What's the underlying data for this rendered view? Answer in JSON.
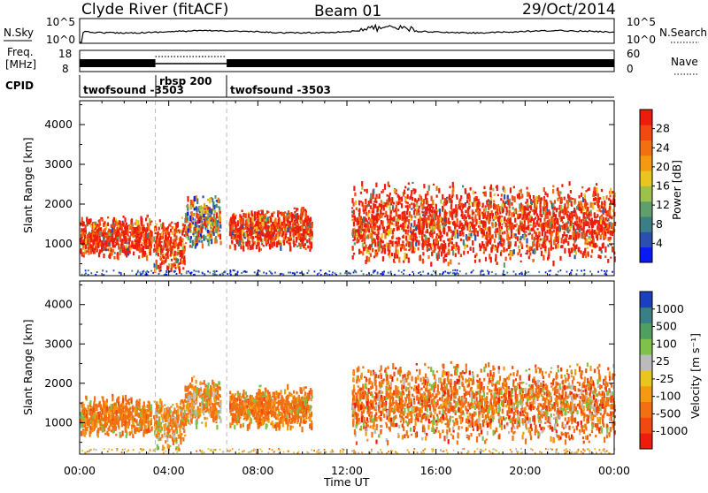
{
  "header": {
    "station": "Clyde River (fitACF)",
    "beam": "Beam 01",
    "date": "29/Oct/2014"
  },
  "status_panels": {
    "nsky_label": "N.Sky",
    "nsky_ticks": [
      "10^5",
      "10^0"
    ],
    "nsearch_label": "N.Search",
    "freq_label_line1": "Freq.",
    "freq_label_line2": "[MHz]",
    "freq_ticks": [
      "18",
      "8"
    ],
    "nave_label": "Nave",
    "nave_ticks": [
      "60",
      "0"
    ],
    "cpid_label": "CPID",
    "cpid_segments": [
      {
        "label": "twofsound -3503",
        "start": 0.0,
        "end": 3.4
      },
      {
        "label": "rbsp 200",
        "start": 3.4,
        "end": 6.6
      },
      {
        "label": "twofsound -3503",
        "start": 6.6,
        "end": 24.0
      }
    ],
    "cpid_overlap_label": "-3503"
  },
  "chart_data": [
    {
      "type": "heatmap",
      "name": "power",
      "ylabel": "Slant Range [km]",
      "xlabel": "",
      "xlim": [
        0,
        24
      ],
      "ylim": [
        200,
        4600
      ],
      "y_ticks": [
        1000,
        2000,
        3000,
        4000
      ],
      "colorbar_label": "Power [dB]",
      "colorbar_ticks": [
        "4",
        "8",
        "12",
        "16",
        "20",
        "24",
        "28"
      ],
      "colorbar_colors": [
        "#0a1af5",
        "#2a4fb0",
        "#3a7f85",
        "#5fa06a",
        "#9cc24a",
        "#e8c520",
        "#f59a10",
        "#f27010",
        "#f04a10",
        "#ee1c0c"
      ],
      "dashed_lines_x": [
        3.4,
        6.6
      ],
      "scatter_regions": [
        {
          "t0": 0.0,
          "t1": 3.2,
          "r0": 650,
          "r1": 1750,
          "dominant": "red-orange"
        },
        {
          "t0": 3.3,
          "t1": 4.7,
          "r0": 300,
          "r1": 1700,
          "dominant": "red-orange"
        },
        {
          "t0": 4.7,
          "t1": 6.3,
          "r0": 900,
          "r1": 2250,
          "dominant": "mixed"
        },
        {
          "t0": 6.7,
          "t1": 8.2,
          "r0": 900,
          "r1": 1900,
          "dominant": "red-orange"
        },
        {
          "t0": 7.9,
          "t1": 10.4,
          "r0": 850,
          "r1": 2000,
          "dominant": "red-orange"
        },
        {
          "t0": 12.2,
          "t1": 24.0,
          "r0": 500,
          "r1": 2600,
          "dominant": "red-orange"
        }
      ]
    },
    {
      "type": "heatmap",
      "name": "velocity",
      "ylabel": "Slant Range [km]",
      "xlabel": "Time UT",
      "xlim": [
        0,
        24
      ],
      "ylim": [
        200,
        4600
      ],
      "x_ticks": [
        "00:00",
        "04:00",
        "08:00",
        "12:00",
        "16:00",
        "20:00",
        "00:00"
      ],
      "y_ticks": [
        1000,
        2000,
        3000,
        4000
      ],
      "colorbar_label": "Velocity [m s⁻¹]",
      "colorbar_ticks": [
        "-1000",
        "-500",
        "-100",
        "-25",
        "25",
        "100",
        "500",
        "1000"
      ],
      "colorbar_colors": [
        "#ee1c0c",
        "#f04a10",
        "#f27010",
        "#f59a10",
        "#e8c520",
        "#bbbbbb",
        "#7fc24a",
        "#4fa060",
        "#3a7f85",
        "#1a3fc0"
      ],
      "dashed_lines_x": [
        3.4,
        6.6
      ],
      "scatter_regions": [
        {
          "t0": 0.0,
          "t1": 3.2,
          "r0": 650,
          "r1": 1750,
          "dominant": "orange"
        },
        {
          "t0": 3.3,
          "t1": 4.7,
          "r0": 300,
          "r1": 1700,
          "dominant": "orange-green"
        },
        {
          "t0": 4.7,
          "t1": 6.3,
          "r0": 900,
          "r1": 2250,
          "dominant": "orange-green"
        },
        {
          "t0": 6.7,
          "t1": 8.2,
          "r0": 900,
          "r1": 1900,
          "dominant": "orange"
        },
        {
          "t0": 7.9,
          "t1": 10.4,
          "r0": 850,
          "r1": 2000,
          "dominant": "orange"
        },
        {
          "t0": 12.2,
          "t1": 24.0,
          "r0": 500,
          "r1": 2600,
          "dominant": "orange-red"
        }
      ]
    }
  ]
}
